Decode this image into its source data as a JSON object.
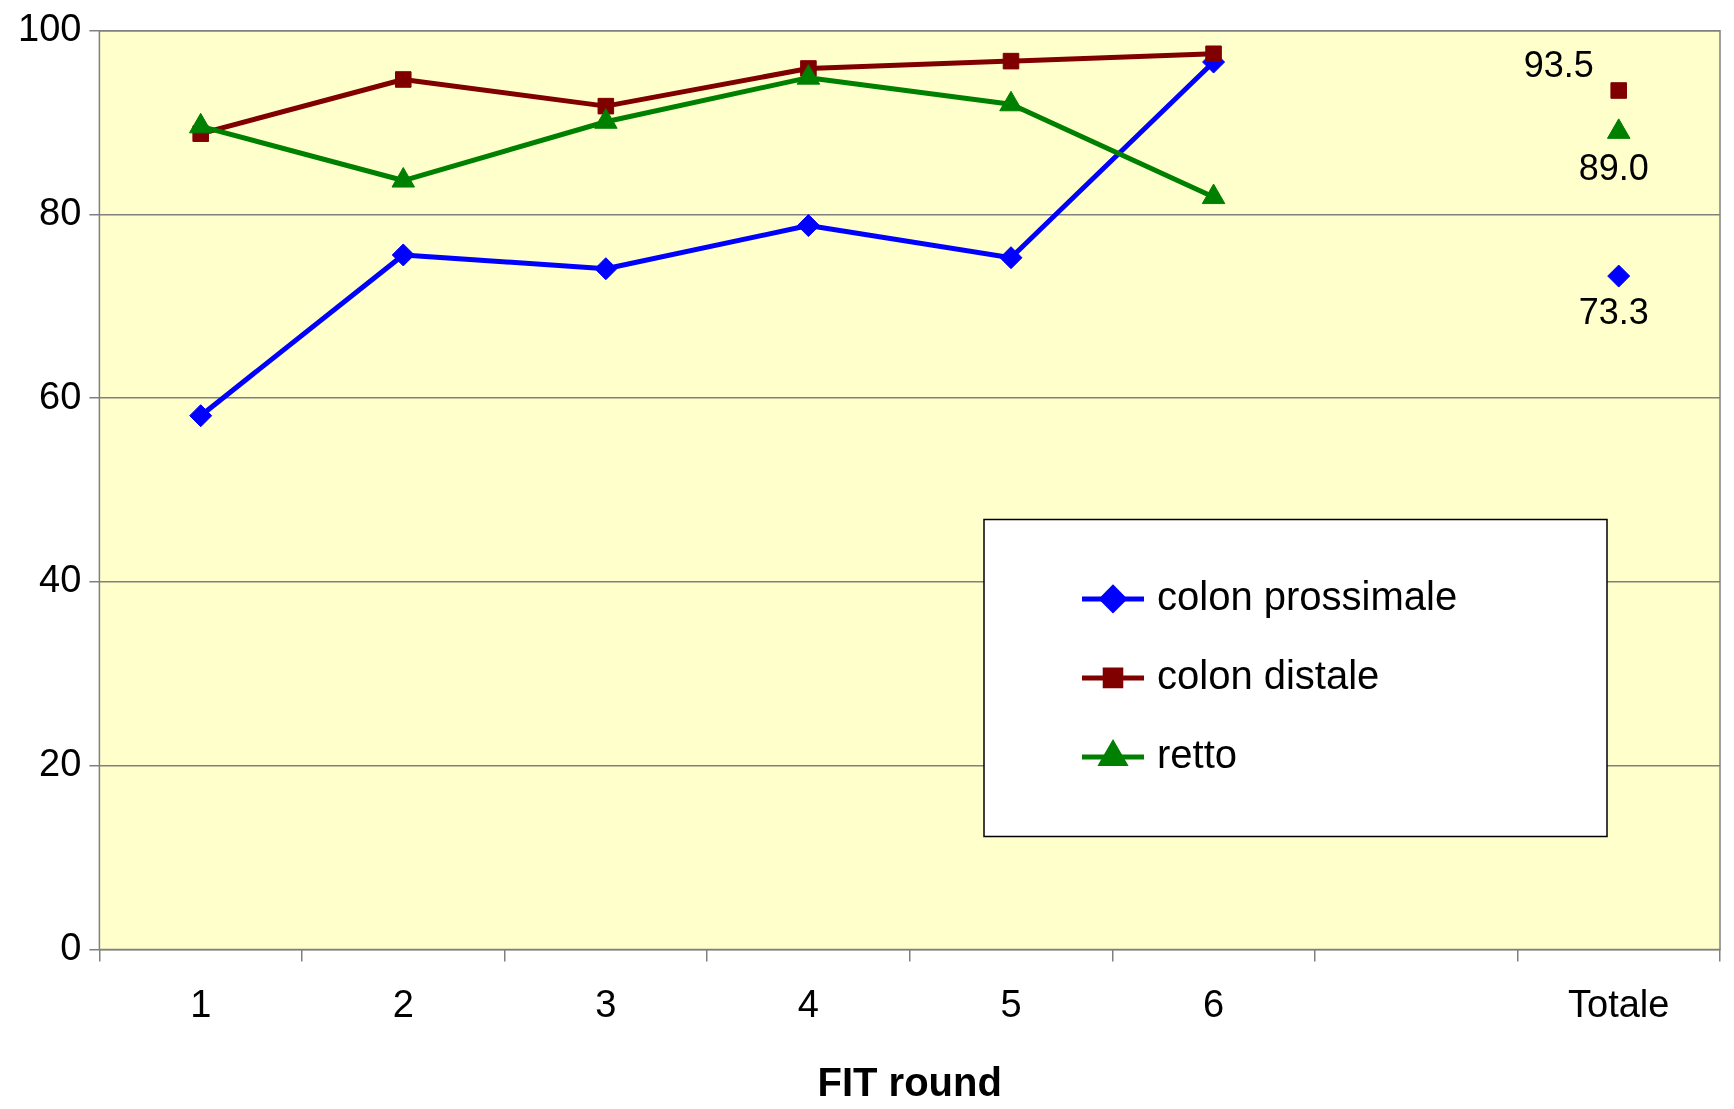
{
  "chart_data": {
    "type": "line",
    "xlabel": "FIT round",
    "categories": [
      "1",
      "2",
      "3",
      "4",
      "5",
      "6",
      null,
      "Totale"
    ],
    "series": [
      {
        "name": "colon prossimale",
        "color": "#0000ff",
        "marker": "diamond",
        "values": [
          58.1,
          75.6,
          74.1,
          78.8,
          75.3,
          96.6,
          null,
          73.3
        ],
        "value_labels": [
          null,
          null,
          null,
          null,
          null,
          null,
          null,
          "73.3"
        ]
      },
      {
        "name": "colon distale",
        "color": "#800000",
        "marker": "square",
        "values": [
          88.8,
          94.7,
          91.8,
          95.9,
          96.7,
          97.5,
          null,
          93.5
        ],
        "value_labels": [
          null,
          null,
          null,
          null,
          null,
          null,
          null,
          "93.5"
        ]
      },
      {
        "name": "retto",
        "color": "#008000",
        "marker": "triangle",
        "values": [
          89.6,
          83.7,
          90.1,
          94.9,
          92.0,
          81.9,
          null,
          89.0
        ],
        "value_labels": [
          null,
          null,
          null,
          null,
          null,
          null,
          null,
          "89.0"
        ]
      }
    ],
    "ylim": [
      0,
      100
    ],
    "yticks": [
      0,
      20,
      40,
      60,
      80,
      100
    ],
    "grid": "y",
    "legend": "bottom right",
    "line_style": "solid"
  }
}
